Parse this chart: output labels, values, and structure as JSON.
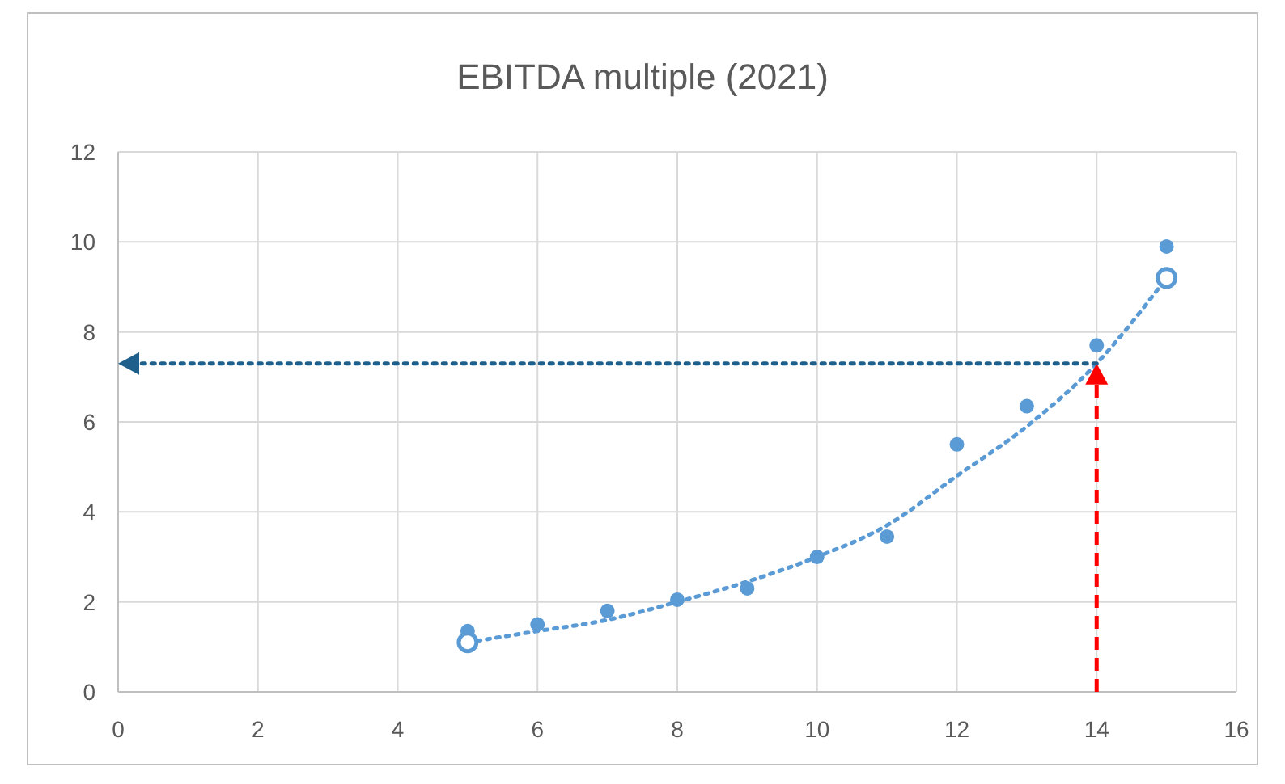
{
  "chart_data": {
    "type": "scatter",
    "title": "EBITDA multiple (2021)",
    "xlim": [
      0,
      16
    ],
    "xticks": [
      0,
      2,
      4,
      6,
      8,
      10,
      12,
      14,
      16
    ],
    "ylim": [
      0,
      12
    ],
    "yticks": [
      0,
      2,
      4,
      6,
      8,
      10,
      12
    ],
    "grid": true,
    "marker": "circle",
    "series": [
      {
        "color": "#5b9bd5",
        "x": [
          5,
          6,
          7,
          8,
          9,
          10,
          11,
          12,
          13,
          14,
          15
        ],
        "values": [
          1.35,
          1.5,
          1.8,
          2.05,
          2.3,
          3.0,
          3.45,
          5.5,
          6.35,
          7.7,
          9.9
        ]
      },
      {
        "color": "#5b9bd5",
        "x": [
          5,
          15
        ],
        "values": [
          1.1,
          9.2
        ]
      },
      {
        "type": "line",
        "color": "#5b9bd5",
        "line_style": "dotted",
        "marker": "none",
        "x": [
          5,
          6,
          7,
          8,
          9,
          10,
          11,
          12,
          13,
          14,
          15
        ],
        "values": [
          1.1,
          1.35,
          1.6,
          2.0,
          2.45,
          3.0,
          3.7,
          4.8,
          5.9,
          7.3,
          9.2
        ]
      }
    ],
    "ref_lines": [
      {
        "axis": "x",
        "value": 14,
        "color": "#ff0000",
        "line_style": "dashed"
      },
      {
        "axis": "y",
        "value": 7.3,
        "color": "#1f5f8b",
        "line_style": "dotted"
      }
    ]
  }
}
